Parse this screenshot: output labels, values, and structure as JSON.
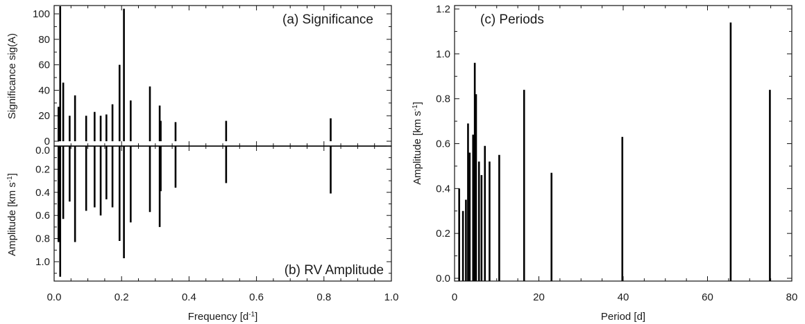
{
  "chart_data": [
    {
      "id": "a",
      "type": "bar",
      "title": "(a) Significance",
      "xlabel": "",
      "ylabel": "Significance sig(A)",
      "xlim": [
        0.0,
        1.0
      ],
      "ylim": [
        0,
        110
      ],
      "x_ticks": [],
      "y_ticks": [
        "0",
        "20",
        "40",
        "60",
        "80",
        "100"
      ],
      "x": [
        0.013,
        0.018,
        0.027,
        0.046,
        0.062,
        0.095,
        0.12,
        0.138,
        0.155,
        0.173,
        0.194,
        0.207,
        0.227,
        0.284,
        0.313,
        0.316,
        0.36,
        0.51,
        0.82
      ],
      "values": [
        27,
        106,
        46,
        20,
        36,
        20,
        23,
        20,
        21,
        29,
        60,
        104,
        32,
        43,
        28,
        16,
        15,
        16,
        18
      ]
    },
    {
      "id": "b",
      "type": "bar",
      "title": "(b) RV Amplitude",
      "xlabel": "Frequency [d^-1]",
      "ylabel": "Amplitude [km s^-1]",
      "xlim": [
        0.0,
        1.0
      ],
      "ylim": [
        1.2,
        0.0
      ],
      "y_inverted": true,
      "x_ticks": [
        "0.0",
        "0.2",
        "0.4",
        "0.6",
        "0.8",
        "1.0"
      ],
      "y_ticks": [
        "0.0",
        "0.2",
        "0.4",
        "0.6",
        "0.8",
        "1.0"
      ],
      "x": [
        0.013,
        0.018,
        0.027,
        0.046,
        0.062,
        0.095,
        0.12,
        0.138,
        0.155,
        0.173,
        0.194,
        0.207,
        0.227,
        0.284,
        0.313,
        0.316,
        0.36,
        0.51,
        0.82
      ],
      "values": [
        0.83,
        1.13,
        0.63,
        0.48,
        0.83,
        0.56,
        0.53,
        0.6,
        0.46,
        0.53,
        0.82,
        0.97,
        0.66,
        0.57,
        0.7,
        0.39,
        0.36,
        0.32,
        0.41
      ]
    },
    {
      "id": "c",
      "type": "bar",
      "title": "(c) Periods",
      "xlabel": "Period [d]",
      "ylabel": "Amplitude [km s^-1]",
      "xlim": [
        0,
        80
      ],
      "ylim": [
        0.0,
        1.2
      ],
      "x_ticks": [
        "0",
        "20",
        "40",
        "60",
        "80"
      ],
      "y_ticks": [
        "0.0",
        "0.2",
        "0.4",
        "0.6",
        "0.8",
        "1.0",
        "1.2"
      ],
      "x": [
        1.1,
        2.0,
        2.7,
        3.2,
        3.6,
        4.4,
        4.8,
        5.1,
        5.8,
        6.4,
        7.2,
        8.3,
        10.6,
        16.5,
        23.0,
        39.8,
        65.5,
        74.8
      ],
      "values": [
        0.4,
        0.3,
        0.35,
        0.69,
        0.56,
        0.64,
        0.96,
        0.82,
        0.52,
        0.46,
        0.59,
        0.52,
        0.55,
        0.84,
        0.47,
        0.63,
        1.14,
        0.84
      ]
    }
  ]
}
